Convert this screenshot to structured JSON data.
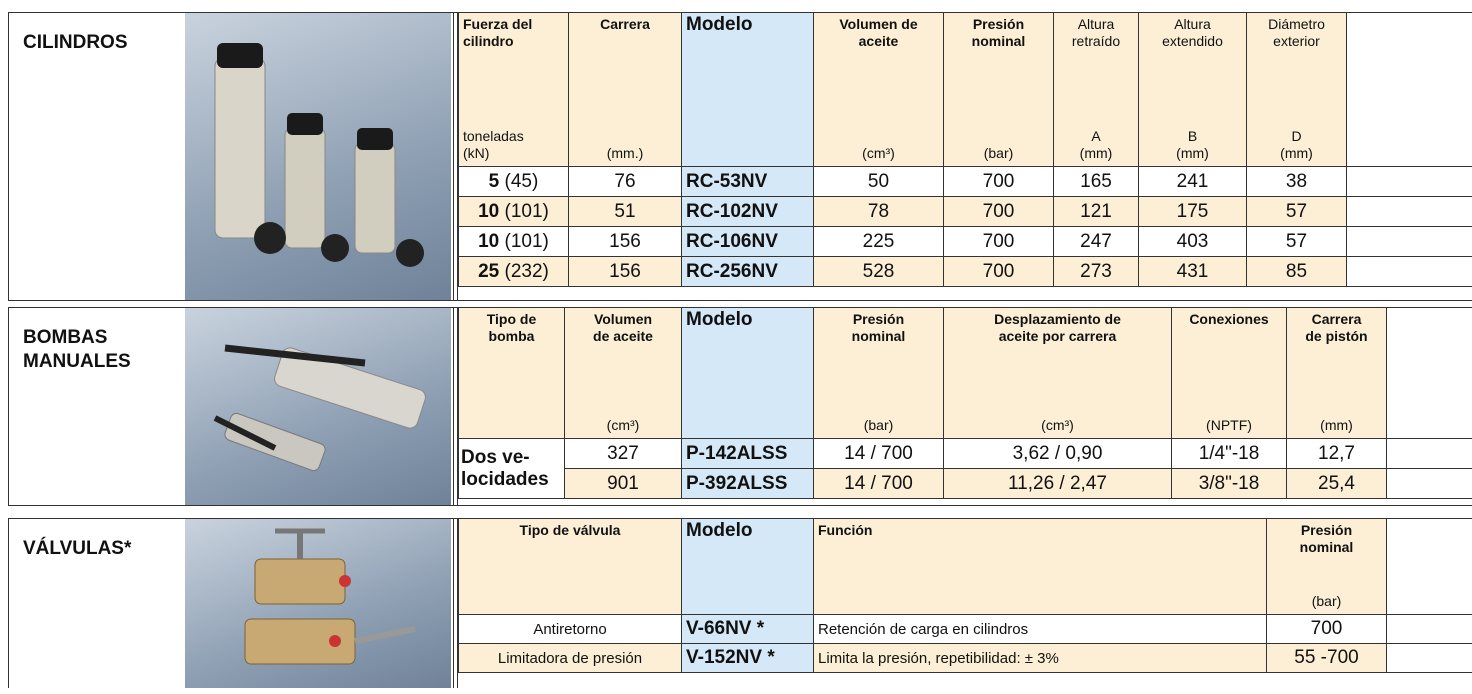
{
  "cylinders": {
    "label": [
      "CILINDROS"
    ],
    "headers": [
      {
        "title": [
          "Fuerza del",
          "cilindro"
        ],
        "unit": [
          "toneladas",
          "(kN)"
        ]
      },
      {
        "title": [
          "Carrera"
        ],
        "unit": [
          "(mm.)"
        ]
      },
      {
        "title": [
          "Modelo"
        ],
        "unit": []
      },
      {
        "title": [
          "Volumen de",
          "aceite"
        ],
        "unit": [
          "(cm³)"
        ]
      },
      {
        "title": [
          "Presión",
          "nominal"
        ],
        "unit": [
          "(bar)"
        ]
      },
      {
        "title": [
          "Altura",
          "retraído"
        ],
        "unit": [
          "A",
          "(mm)"
        ]
      },
      {
        "title": [
          "Altura",
          "extendido"
        ],
        "unit": [
          "B",
          "(mm)"
        ]
      },
      {
        "title": [
          "Diámetro",
          "exterior"
        ],
        "unit": [
          "D",
          "(mm)"
        ]
      }
    ],
    "rows": [
      {
        "tons": "5",
        "kn": "(45)",
        "cells": [
          "76",
          "RC-53NV",
          "50",
          "700",
          "165",
          "241",
          "38"
        ]
      },
      {
        "tons": "10",
        "kn": "(101)",
        "cells": [
          "51",
          "RC-102NV",
          "78",
          "700",
          "121",
          "175",
          "57"
        ]
      },
      {
        "tons": "10",
        "kn": "(101)",
        "cells": [
          "156",
          "RC-106NV",
          "225",
          "700",
          "247",
          "403",
          "57"
        ]
      },
      {
        "tons": "25",
        "kn": "(232)",
        "cells": [
          "156",
          "RC-256NV",
          "528",
          "700",
          "273",
          "431",
          "85"
        ]
      }
    ]
  },
  "pumps": {
    "label": [
      "BOMBAS",
      "MANUALES"
    ],
    "headers": [
      {
        "title": [
          "Tipo de",
          "bomba"
        ],
        "unit": []
      },
      {
        "title": [
          "Volumen",
          "de aceite"
        ],
        "unit": [
          "(cm³)"
        ]
      },
      {
        "title": [
          "Modelo"
        ],
        "unit": []
      },
      {
        "title": [
          "Presión",
          "nominal"
        ],
        "unit": [
          "(bar)"
        ]
      },
      {
        "title": [
          "Desplazamiento de",
          "aceite por carrera"
        ],
        "unit": [
          "(cm³)"
        ]
      },
      {
        "title": [
          "Conexiones"
        ],
        "unit": [
          "(NPTF)"
        ]
      },
      {
        "title": [
          "Carrera",
          "de pistón"
        ],
        "unit": [
          "(mm)"
        ]
      }
    ],
    "pump_type": [
      "Dos ve-",
      "locidades"
    ],
    "rows": [
      {
        "cells": [
          "327",
          "P-142ALSS",
          "14 / 700",
          "3,62 / 0,90",
          "1/4\"-18",
          "12,7"
        ]
      },
      {
        "cells": [
          "901",
          "P-392ALSS",
          "14 / 700",
          "11,26 / 2,47",
          "3/8\"-18",
          "25,4"
        ]
      }
    ]
  },
  "valves": {
    "label": [
      "VÁLVULAS*"
    ],
    "headers": [
      {
        "title": [
          "Tipo de válvula"
        ],
        "unit": []
      },
      {
        "title": [
          "Modelo"
        ],
        "unit": []
      },
      {
        "title": [
          "Función"
        ],
        "unit": []
      },
      {
        "title": [
          "Presión",
          "nominal"
        ],
        "unit": [
          "(bar)"
        ]
      }
    ],
    "rows": [
      {
        "cells": [
          "Antiretorno",
          "V-66NV *",
          "Retención de carga en cilindros",
          "700"
        ]
      },
      {
        "cells": [
          "Limitadora de presión",
          "V-152NV *",
          "Limita la presión, repetibilidad: ± 3%",
          "55 -700"
        ]
      }
    ]
  }
}
